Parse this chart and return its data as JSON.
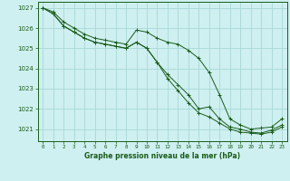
{
  "background_color": "#cff0f0",
  "grid_color": "#a8d8d8",
  "line_color": "#1a5c1a",
  "xlabel": "Graphe pression niveau de la mer (hPa)",
  "xlim": [
    -0.5,
    23.5
  ],
  "ylim": [
    1020.4,
    1027.3
  ],
  "yticks": [
    1021,
    1022,
    1023,
    1024,
    1025,
    1026,
    1027
  ],
  "xticks": [
    0,
    1,
    2,
    3,
    4,
    5,
    6,
    7,
    8,
    9,
    10,
    11,
    12,
    13,
    14,
    15,
    16,
    17,
    18,
    19,
    20,
    21,
    22,
    23
  ],
  "series": [
    [
      1027.0,
      1026.8,
      1026.3,
      1026.0,
      1025.7,
      1025.5,
      1025.4,
      1025.3,
      1025.2,
      1025.9,
      1025.8,
      1025.5,
      1025.3,
      1025.2,
      1024.9,
      1024.5,
      1023.8,
      1022.7,
      1021.5,
      1021.2,
      1021.0,
      1021.05,
      1021.1,
      1021.5
    ],
    [
      1027.0,
      1026.7,
      1026.1,
      1025.8,
      1025.5,
      1025.3,
      1025.2,
      1025.1,
      1025.0,
      1025.3,
      1025.0,
      1024.3,
      1023.7,
      1023.2,
      1022.7,
      1022.0,
      1022.1,
      1021.5,
      1021.1,
      1021.0,
      1020.85,
      1020.8,
      1020.95,
      1021.2
    ],
    [
      1027.0,
      1026.7,
      1026.1,
      1025.8,
      1025.5,
      1025.3,
      1025.2,
      1025.1,
      1025.0,
      1025.3,
      1025.0,
      1024.3,
      1023.5,
      1022.9,
      1022.3,
      1021.8,
      1021.6,
      1021.3,
      1021.0,
      1020.85,
      1020.8,
      1020.75,
      1020.85,
      1021.1
    ]
  ]
}
